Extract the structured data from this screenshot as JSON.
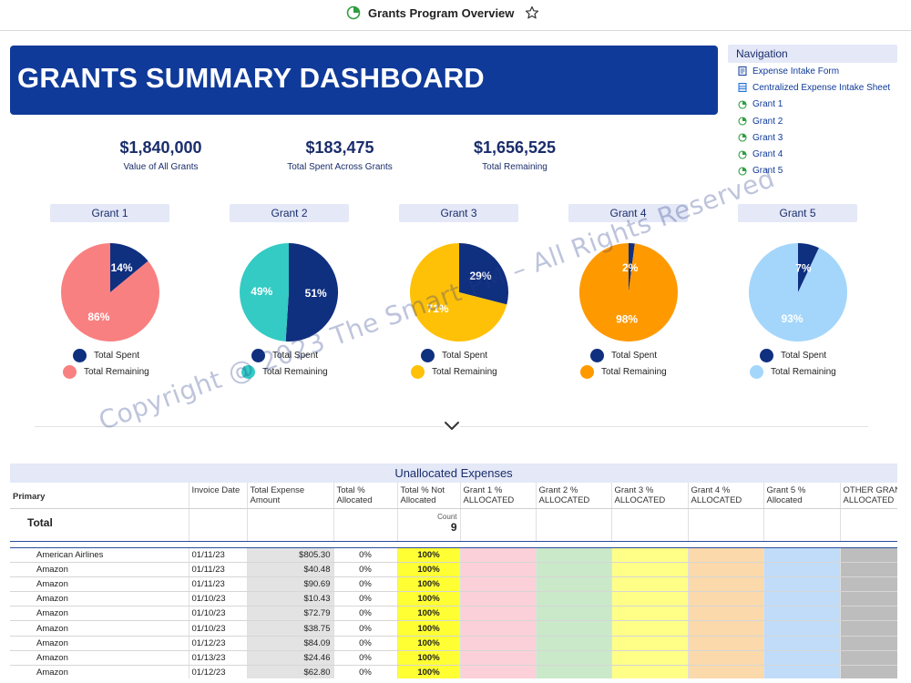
{
  "header": {
    "title": "Grants Program Overview",
    "app_icon": "dashboard-icon",
    "favorite_icon": "star-icon"
  },
  "banner": {
    "title": "GRANTS SUMMARY DASHBOARD"
  },
  "navigation": {
    "title": "Navigation",
    "items": [
      {
        "label": "Expense Intake Form",
        "icon": "form-icon"
      },
      {
        "label": "Centralized Expense Intake Sheet",
        "icon": "sheet-icon"
      },
      {
        "label": "Grant 1",
        "icon": "dashboard-icon"
      },
      {
        "label": "Grant 2",
        "icon": "dashboard-icon"
      },
      {
        "label": "Grant 3",
        "icon": "dashboard-icon"
      },
      {
        "label": "Grant 4",
        "icon": "dashboard-icon"
      },
      {
        "label": "Grant 5",
        "icon": "dashboard-icon"
      }
    ]
  },
  "kpis": [
    {
      "value": "$1,840,000",
      "label": "Value of All Grants"
    },
    {
      "value": "$183,475",
      "label": "Total Spent Across Grants"
    },
    {
      "value": "$1,656,525",
      "label": "Total Remaining"
    }
  ],
  "colors": {
    "spent": "#0f2f7f",
    "banner": "#0f3a99",
    "remaining": [
      "#f98080",
      "#33cbc3",
      "#ffc107",
      "#ff9900",
      "#a4d6fb"
    ]
  },
  "chart_data": [
    {
      "type": "pie",
      "title": "Grant 1",
      "labels": [
        "Total Spent",
        "Total Remaining"
      ],
      "values": [
        14,
        86
      ],
      "value_labels": [
        "14%",
        "86%"
      ]
    },
    {
      "type": "pie",
      "title": "Grant 2",
      "labels": [
        "Total Spent",
        "Total Remaining"
      ],
      "values": [
        51,
        49
      ],
      "value_labels": [
        "51%",
        "49%"
      ]
    },
    {
      "type": "pie",
      "title": "Grant 3",
      "labels": [
        "Total Spent",
        "Total Remaining"
      ],
      "values": [
        29,
        71
      ],
      "value_labels": [
        "29%",
        "71%"
      ]
    },
    {
      "type": "pie",
      "title": "Grant 4",
      "labels": [
        "Total Spent",
        "Total Remaining"
      ],
      "values": [
        2,
        98
      ],
      "value_labels": [
        "2%",
        "98%"
      ]
    },
    {
      "type": "pie",
      "title": "Grant 5",
      "labels": [
        "Total Spent",
        "Total Remaining"
      ],
      "values": [
        7,
        93
      ],
      "value_labels": [
        "7%",
        "93%"
      ]
    }
  ],
  "watermark": "Copyright @ 2023 The Smart PM – All Rights Reserved",
  "expand_icon": "chevron-down-icon",
  "table": {
    "title": "Unallocated Expenses",
    "columns": [
      "Primary",
      "Invoice Date",
      "Total Expense Amount",
      "Total % Allocated",
      "Total % Not Allocated",
      "Grant 1 % ALLOCATED",
      "Grant 2 % ALLOCATED",
      "Grant 3 % ALLOCATED",
      "Grant 4 % ALLOCATED",
      "Grant 5 % Allocated",
      "OTHER GRANT % ALLOCATED"
    ],
    "summary": {
      "label": "Total",
      "count_label": "Count",
      "count_value": "9"
    },
    "rows": [
      {
        "vendor": "American Airlines",
        "date": "01/11/23",
        "amount": "$805.30",
        "allocated": "0%",
        "not_allocated": "100%"
      },
      {
        "vendor": "Amazon",
        "date": "01/11/23",
        "amount": "$40.48",
        "allocated": "0%",
        "not_allocated": "100%"
      },
      {
        "vendor": "Amazon",
        "date": "01/11/23",
        "amount": "$90.69",
        "allocated": "0%",
        "not_allocated": "100%"
      },
      {
        "vendor": "Amazon",
        "date": "01/10/23",
        "amount": "$10.43",
        "allocated": "0%",
        "not_allocated": "100%"
      },
      {
        "vendor": "Amazon",
        "date": "01/10/23",
        "amount": "$72.79",
        "allocated": "0%",
        "not_allocated": "100%"
      },
      {
        "vendor": "Amazon",
        "date": "01/10/23",
        "amount": "$38.75",
        "allocated": "0%",
        "not_allocated": "100%"
      },
      {
        "vendor": "Amazon",
        "date": "01/12/23",
        "amount": "$84.09",
        "allocated": "0%",
        "not_allocated": "100%"
      },
      {
        "vendor": "Amazon",
        "date": "01/13/23",
        "amount": "$24.46",
        "allocated": "0%",
        "not_allocated": "100%"
      },
      {
        "vendor": "Amazon",
        "date": "01/12/23",
        "amount": "$62.80",
        "allocated": "0%",
        "not_allocated": "100%"
      }
    ]
  }
}
